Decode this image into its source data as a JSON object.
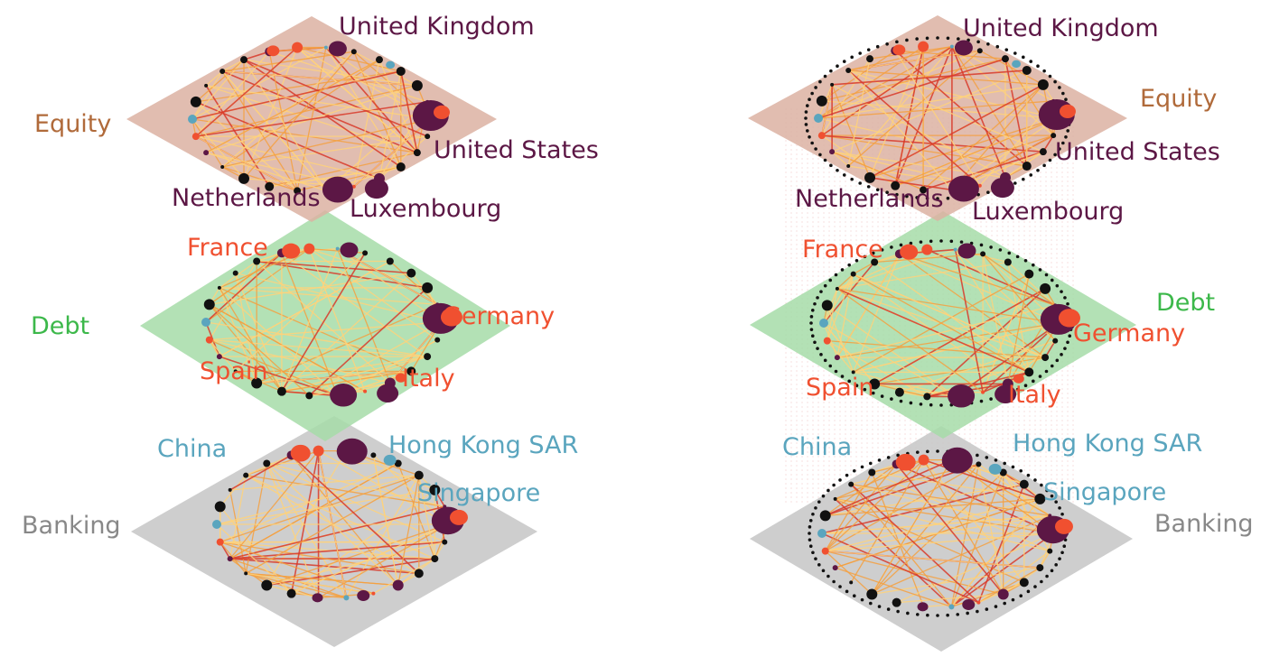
{
  "colors": {
    "equity_plane": "#dcb2a2",
    "debt_plane": "#a6dca8",
    "banking_plane": "#c6c6c6",
    "equity_text": "#b06a3a",
    "debt_text": "#3cb84a",
    "banking_text": "#888888",
    "purple": "#5c1745",
    "red": "#f05030",
    "blue": "#5aa5be",
    "black": "#111111",
    "edge_light": "#ffd27a",
    "edge_mid": "#f4a040",
    "edge_dark": "#d83a2a"
  },
  "left_panel": {
    "layers": {
      "equity": "Equity",
      "debt": "Debt",
      "banking": "Banking"
    },
    "countries": {
      "united_kingdom": "United Kingdom",
      "united_states": "United States",
      "netherlands": "Netherlands",
      "luxembourg": "Luxembourg",
      "france": "France",
      "germany": "Germany",
      "spain": "Spain",
      "italy": "Italy",
      "china": "China",
      "hong_kong": "Hong Kong SAR",
      "singapore": "Singapore"
    }
  },
  "right_panel": {
    "layers": {
      "equity": "Equity",
      "debt": "Debt",
      "banking": "Banking"
    },
    "countries": {
      "united_kingdom": "United Kingdom",
      "united_states": "United States",
      "netherlands": "Netherlands",
      "luxembourg": "Luxembourg",
      "france": "France",
      "germany": "Germany",
      "spain": "Spain",
      "italy": "Italy",
      "china": "China",
      "hong_kong": "Hong Kong SAR",
      "singapore": "Singapore"
    }
  }
}
